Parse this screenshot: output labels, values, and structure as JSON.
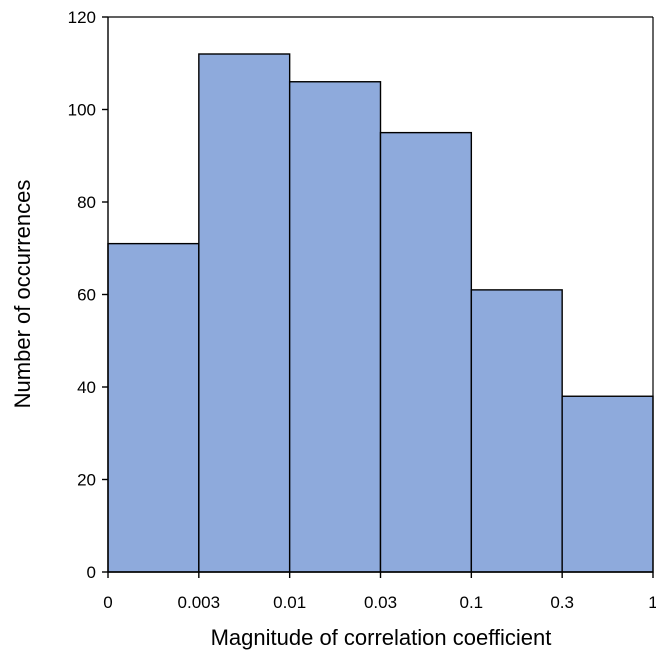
{
  "chart_data": {
    "type": "bar",
    "title": "",
    "xlabel": "Magnitude of correlation coefficient",
    "ylabel": "Number of occurrences",
    "bin_edges": [
      "0",
      "0.003",
      "0.01",
      "0.03",
      "0.1",
      "0.3",
      "1"
    ],
    "values": [
      71,
      112,
      106,
      95,
      61,
      38
    ],
    "ylim": [
      0,
      120
    ],
    "yticks": [
      "0",
      "20",
      "40",
      "60",
      "80",
      "100",
      "120"
    ],
    "grid": false,
    "legend": "none",
    "bar_color": "#8eaadc",
    "edge_color": "#000000"
  }
}
